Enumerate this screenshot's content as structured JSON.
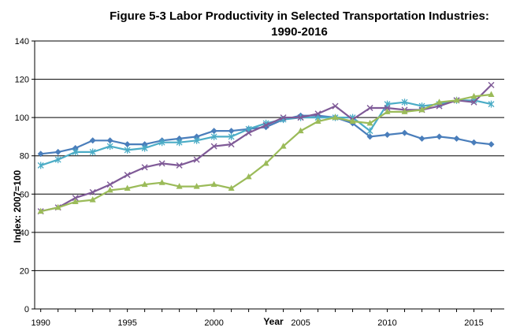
{
  "chart_data": {
    "type": "line",
    "title_line1": "Figure 5-3  Labor Productivity in Selected Transportation Industries:",
    "title_line2": "1990-2016",
    "xlabel": "Year",
    "ylabel": "Index:  2007=100",
    "xlim": [
      1990,
      2016
    ],
    "ylim": [
      0,
      140
    ],
    "xticks": [
      1990,
      1995,
      2000,
      2005,
      2010,
      2015
    ],
    "yticks": [
      0,
      20,
      40,
      60,
      80,
      100,
      120,
      140
    ],
    "grid": "horizontal",
    "legend": "none",
    "x": [
      1990,
      1991,
      1992,
      1993,
      1994,
      1995,
      1996,
      1997,
      1998,
      1999,
      2000,
      2001,
      2002,
      2003,
      2004,
      2005,
      2006,
      2007,
      2008,
      2009,
      2010,
      2011,
      2012,
      2013,
      2014,
      2015,
      2016
    ],
    "series": [
      {
        "color": "#4a7ebb",
        "marker": "diamond",
        "values": [
          81,
          82,
          84,
          88,
          88,
          86,
          86,
          88,
          89,
          90,
          93,
          93,
          94,
          95,
          99,
          101,
          101,
          100,
          97,
          90,
          91,
          92,
          89,
          90,
          89,
          87,
          86
        ]
      },
      {
        "color": "#4bacc6",
        "marker": "star",
        "values": [
          75,
          78,
          82,
          82,
          85,
          83,
          84,
          87,
          87,
          88,
          90,
          90,
          94,
          97,
          99,
          100,
          100,
          100,
          100,
          93,
          107,
          108,
          106,
          107,
          109,
          109,
          107
        ]
      },
      {
        "color": "#7f5a97",
        "marker": "x",
        "values": [
          51,
          53,
          58,
          61,
          65,
          70,
          74,
          76,
          75,
          78,
          85,
          86,
          92,
          96,
          100,
          100,
          102,
          106,
          99,
          105,
          105,
          104,
          104,
          106,
          109,
          108,
          117
        ]
      },
      {
        "color": "#9bbb59",
        "marker": "triangle",
        "values": [
          51,
          53,
          56,
          57,
          62,
          63,
          65,
          66,
          64,
          64,
          65,
          63,
          69,
          76,
          85,
          93,
          98,
          100,
          98,
          97,
          103,
          103,
          104,
          108,
          109,
          111,
          112
        ]
      }
    ]
  }
}
